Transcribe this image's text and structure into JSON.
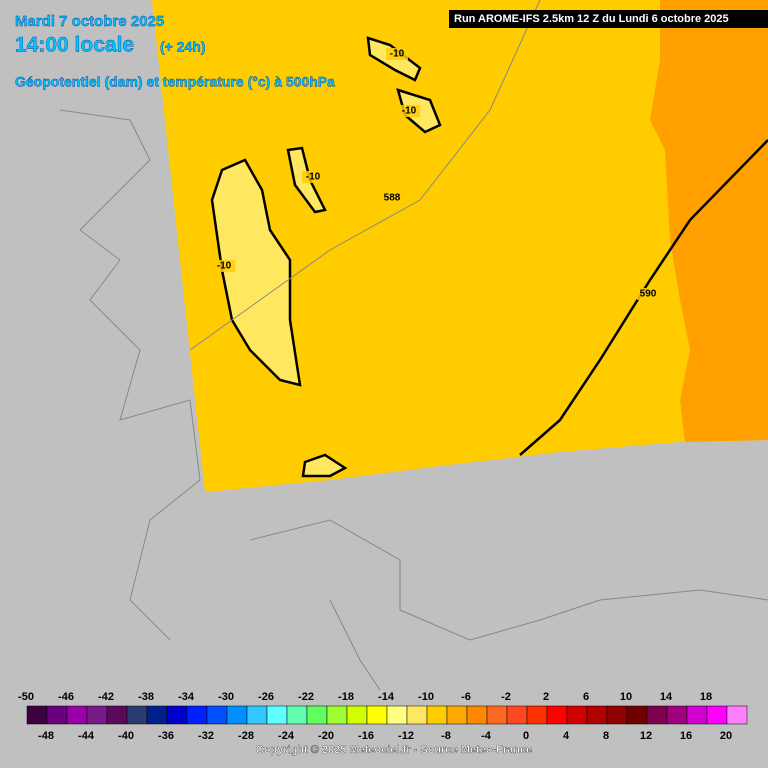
{
  "header": {
    "date": "Mardi 7 octobre 2025",
    "time": "14:00 locale",
    "lead": "(+ 24h)",
    "subtitle": "Géopotentiel (dam) et température (°c) à 500hPa"
  },
  "run": "Run AROME-IFS 2.5km 12 Z du Lundi 6 octobre 2025",
  "contour_labels": [
    "-10",
    "-10",
    "-10",
    "-10",
    "588",
    "590"
  ],
  "legend": {
    "labels": [
      -50,
      -48,
      -46,
      -44,
      -42,
      -40,
      -38,
      -36,
      -34,
      -32,
      -30,
      -28,
      -26,
      -24,
      -22,
      -20,
      -18,
      -16,
      -14,
      -12,
      -10,
      -8,
      -6,
      -4,
      -2,
      0,
      2,
      4,
      6,
      8,
      10,
      12,
      14,
      16,
      18,
      20
    ],
    "colors": [
      "#3c0040",
      "#6a0080",
      "#9a00a8",
      "#7a1a8a",
      "#5a0a5a",
      "#2a3a70",
      "#00208a",
      "#0000cc",
      "#0020ff",
      "#0050ff",
      "#0090ff",
      "#30c8ff",
      "#60ffff",
      "#60ffb0",
      "#60ff60",
      "#a0ff30",
      "#d0ff00",
      "#ffff00",
      "#ffff80",
      "#ffe860",
      "#ffcc00",
      "#ffa800",
      "#ff8800",
      "#ff6820",
      "#ff4820",
      "#ff3000",
      "#ff0000",
      "#d00000",
      "#b00000",
      "#900000",
      "#700000",
      "#800050",
      "#a00080",
      "#d000d0",
      "#ff00ff",
      "#ff80ff"
    ]
  },
  "copyright": "Copyright © 2025 Meteociel.fr - Source Meteo-France"
}
